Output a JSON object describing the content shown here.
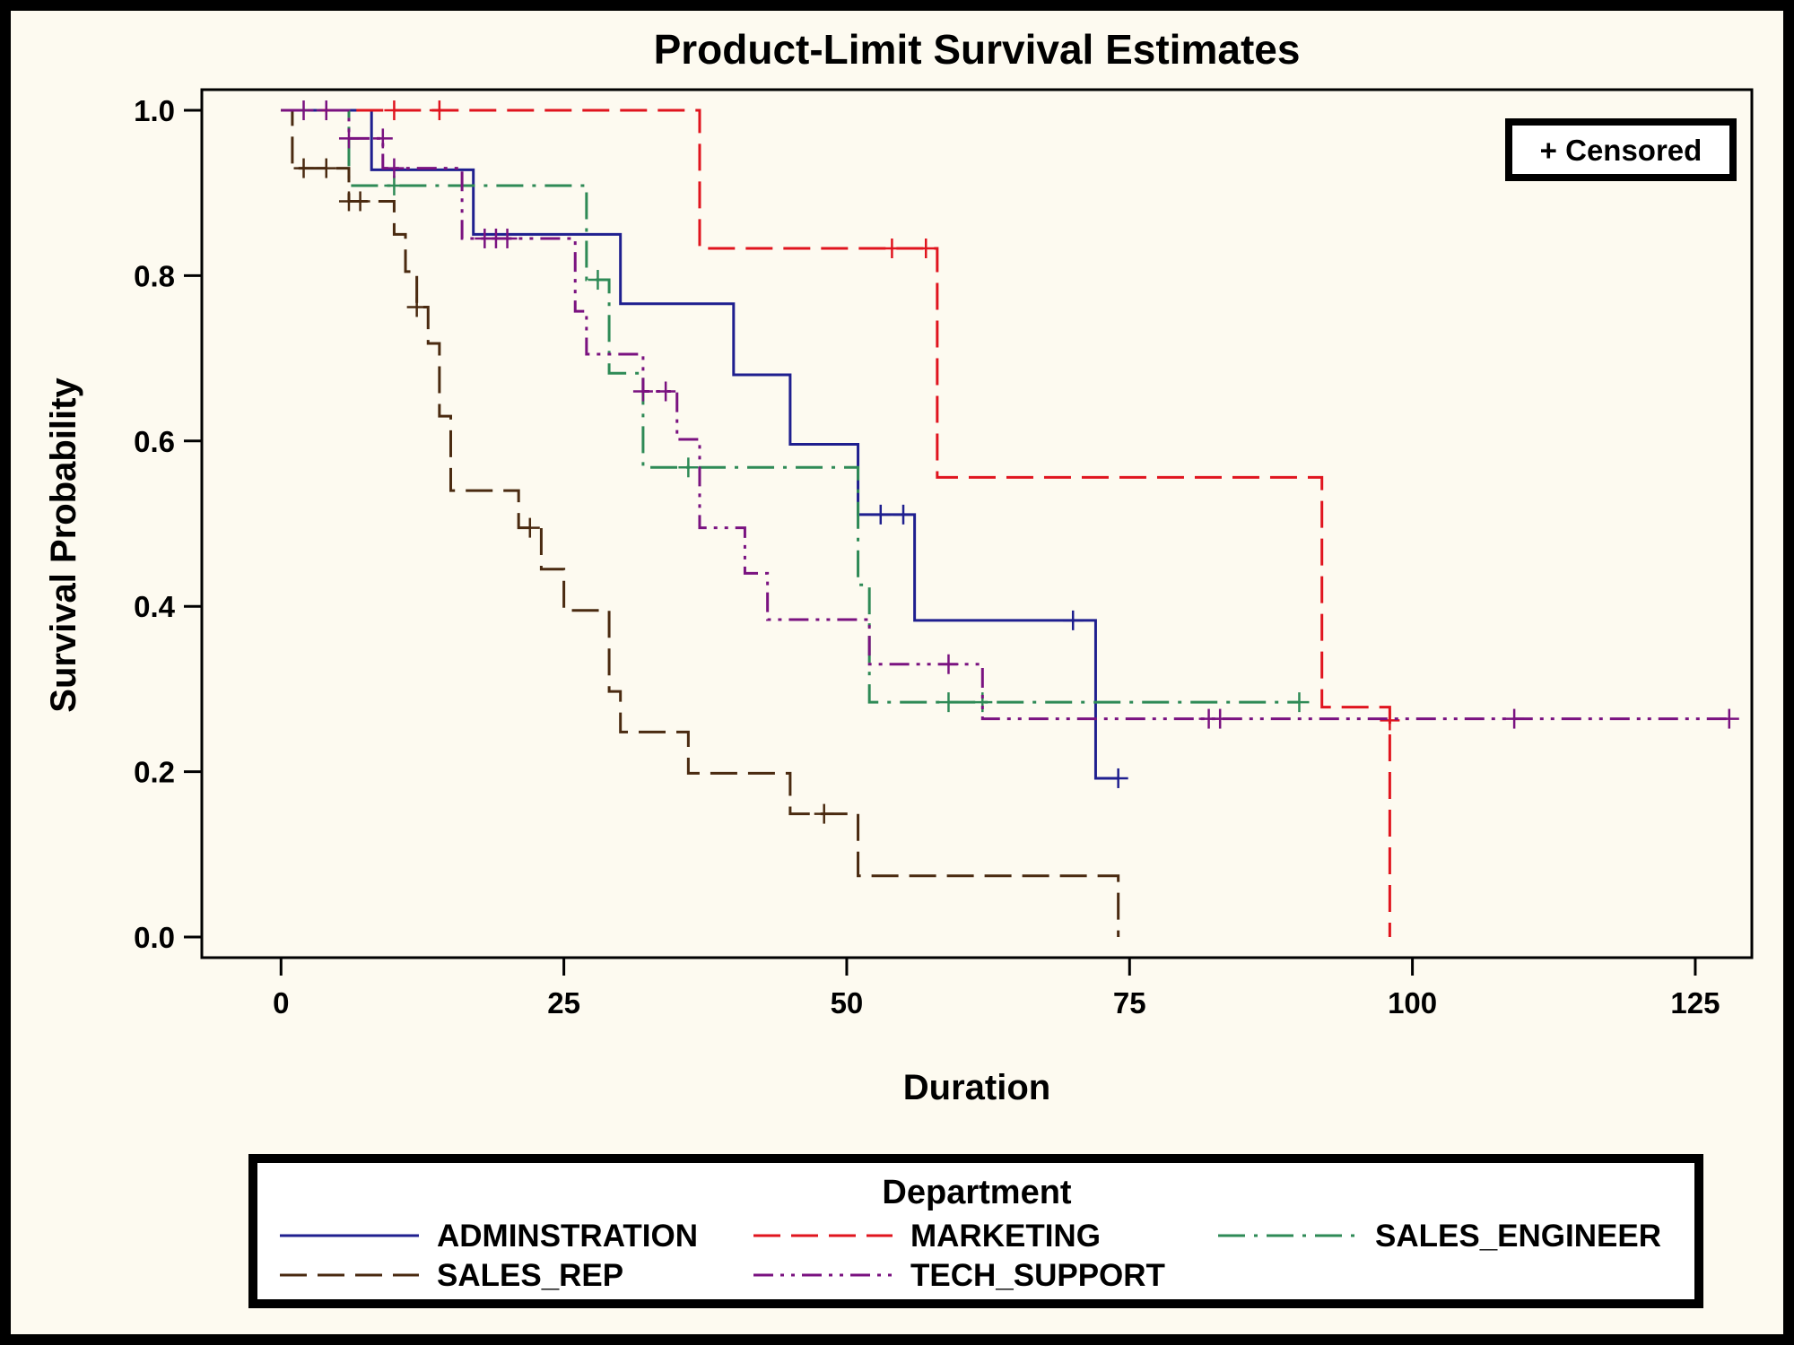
{
  "chart_data": {
    "type": "line",
    "title": "Product-Limit Survival Estimates",
    "xlabel": "Duration",
    "ylabel": "Survival Probability",
    "xlim": [
      -7,
      130
    ],
    "ylim": [
      -0.025,
      1.025
    ],
    "xticks": [
      0,
      25,
      50,
      75,
      100,
      125
    ],
    "yticks": [
      0.0,
      0.2,
      0.4,
      0.6,
      0.8,
      1.0
    ],
    "censored_label": "+ Censored",
    "censored_legend_position": "top-right",
    "legend_title": "Department",
    "legend_position": "bottom",
    "grid": false,
    "series": [
      {
        "name": "ADMINSTRATION",
        "color": "#1f1f8f",
        "dash": "solid",
        "steps": [
          [
            0,
            1.0
          ],
          [
            8,
            0.928
          ],
          [
            17,
            0.85
          ],
          [
            30,
            0.766
          ],
          [
            40,
            0.68
          ],
          [
            45,
            0.596
          ],
          [
            51,
            0.511
          ],
          [
            56,
            0.383
          ],
          [
            72,
            0.192
          ],
          [
            74,
            0.192
          ]
        ],
        "censored": [
          [
            53,
            0.511
          ],
          [
            55,
            0.511
          ],
          [
            70,
            0.383
          ],
          [
            74,
            0.192
          ]
        ]
      },
      {
        "name": "MARKETING",
        "color": "#e0141e",
        "dash": "long-dash",
        "steps": [
          [
            0,
            1.0
          ],
          [
            37,
            0.833
          ],
          [
            58,
            0.556
          ],
          [
            92,
            0.278
          ],
          [
            98,
            0.0
          ],
          [
            98,
            0.0
          ]
        ],
        "censored": [
          [
            10,
            1.0
          ],
          [
            14,
            1.0
          ],
          [
            54,
            0.833
          ],
          [
            57,
            0.833
          ],
          [
            98,
            0.262
          ]
        ]
      },
      {
        "name": "SALES_ENGINEER",
        "color": "#2e8a56",
        "dash": "dash-dot",
        "steps": [
          [
            0,
            1.0
          ],
          [
            6,
            0.909
          ],
          [
            27,
            0.795
          ],
          [
            29,
            0.682
          ],
          [
            32,
            0.568
          ],
          [
            51,
            0.426
          ],
          [
            52,
            0.284
          ],
          [
            90,
            0.284
          ]
        ],
        "censored": [
          [
            10,
            0.909
          ],
          [
            28,
            0.795
          ],
          [
            36,
            0.568
          ],
          [
            59,
            0.284
          ],
          [
            62,
            0.284
          ],
          [
            90,
            0.284
          ]
        ]
      },
      {
        "name": "SALES_REP",
        "color": "#4a2a10",
        "dash": "long-dash",
        "steps": [
          [
            0,
            1.0
          ],
          [
            1,
            0.93
          ],
          [
            6,
            0.89
          ],
          [
            10,
            0.85
          ],
          [
            11,
            0.805
          ],
          [
            12,
            0.762
          ],
          [
            13,
            0.718
          ],
          [
            14,
            0.63
          ],
          [
            15,
            0.54
          ],
          [
            21,
            0.495
          ],
          [
            23,
            0.445
          ],
          [
            25,
            0.395
          ],
          [
            29,
            0.297
          ],
          [
            30,
            0.248
          ],
          [
            36,
            0.198
          ],
          [
            45,
            0.149
          ],
          [
            51,
            0.074
          ],
          [
            74,
            0.0
          ],
          [
            74,
            0.0
          ]
        ],
        "censored": [
          [
            2,
            0.93
          ],
          [
            4,
            0.93
          ],
          [
            6,
            0.89
          ],
          [
            7,
            0.89
          ],
          [
            12,
            0.762
          ],
          [
            22,
            0.495
          ],
          [
            48,
            0.149
          ]
        ]
      },
      {
        "name": "TECH_SUPPORT",
        "color": "#7a1280",
        "dash": "dash-dot-dot",
        "steps": [
          [
            0,
            1.0
          ],
          [
            6,
            0.966
          ],
          [
            9,
            0.93
          ],
          [
            16,
            0.845
          ],
          [
            26,
            0.757
          ],
          [
            27,
            0.705
          ],
          [
            32,
            0.66
          ],
          [
            35,
            0.602
          ],
          [
            37,
            0.495
          ],
          [
            41,
            0.44
          ],
          [
            43,
            0.384
          ],
          [
            52,
            0.33
          ],
          [
            62,
            0.264
          ],
          [
            128,
            0.264
          ]
        ],
        "censored": [
          [
            2,
            1.0
          ],
          [
            4,
            1.0
          ],
          [
            6,
            0.966
          ],
          [
            9,
            0.966
          ],
          [
            10,
            0.93
          ],
          [
            18,
            0.845
          ],
          [
            19,
            0.845
          ],
          [
            20,
            0.845
          ],
          [
            32,
            0.66
          ],
          [
            34,
            0.66
          ],
          [
            59,
            0.33
          ],
          [
            82,
            0.264
          ],
          [
            83,
            0.264
          ],
          [
            109,
            0.264
          ],
          [
            128,
            0.264
          ]
        ]
      }
    ]
  }
}
